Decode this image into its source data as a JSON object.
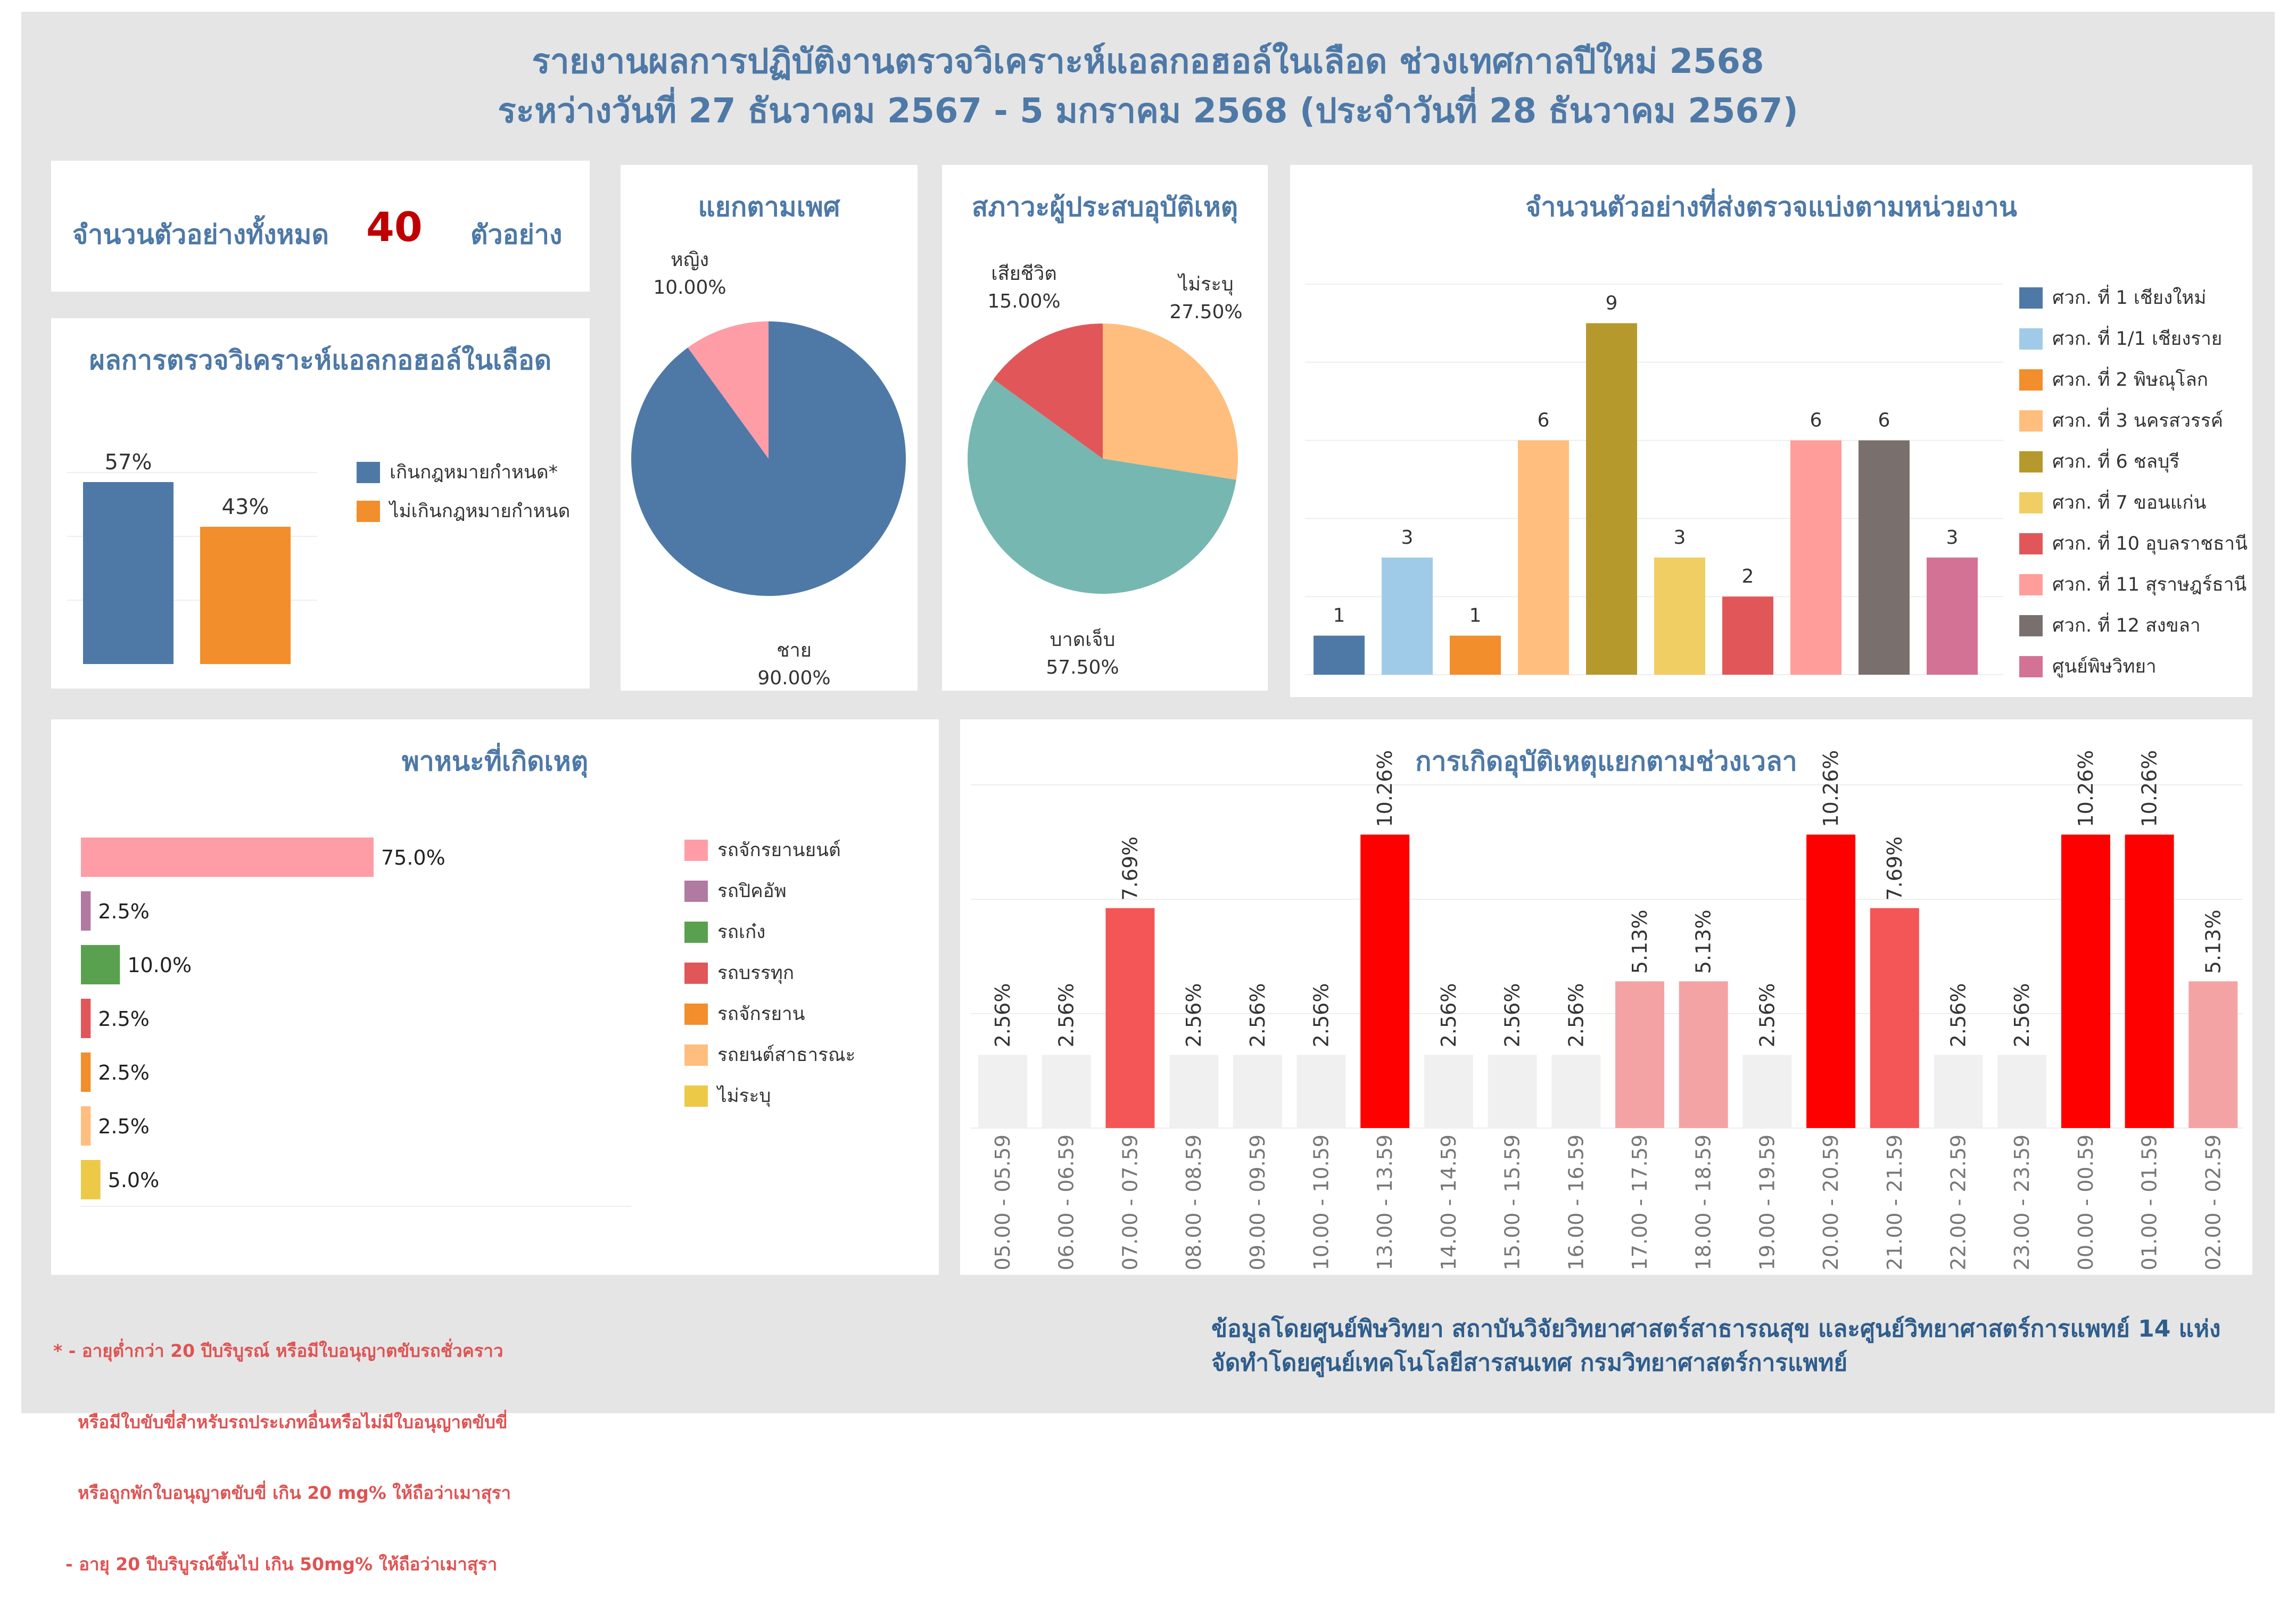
{
  "header": {
    "title_line1": "รายงานผลการปฏิบัติงานตรวจวิเคราะห์แอลกอฮอล์ในเลือด ช่วงเทศกาลปีใหม่ 2568",
    "title_line2": "ระหว่างวันที่ 27 ธันวาคม 2567 - 5 มกราคม 2568 (ประจำวันที่ 28 ธันวาคม 2567)"
  },
  "total": {
    "label": "จำนวนตัวอย่างทั้งหมด",
    "value": "40",
    "unit": "ตัวอย่าง"
  },
  "colors": {
    "title": "#4e79a7",
    "total_value": "#c00000",
    "footnote": "#e05252"
  },
  "charts": {
    "result": {
      "title": "ผลการตรวจวิเคราะห์แอลกอฮอล์ในเลือด",
      "type": "bar",
      "categories": [
        "เกินกฎหมายกำหนด*",
        "ไม่เกินกฎหมายกำหนด"
      ],
      "values": [
        57,
        43
      ],
      "labels": [
        "57%",
        "43%"
      ],
      "colors": [
        "#4e79a7",
        "#f28e2b"
      ]
    },
    "gender": {
      "title": "แยกตามเพศ",
      "type": "pie",
      "slices": [
        {
          "name": "ชาย",
          "value": 90.0,
          "pct_label": "90.00%",
          "color": "#4e79a7"
        },
        {
          "name": "หญิง",
          "value": 10.0,
          "pct_label": "10.00%",
          "color": "#ff9da7"
        }
      ]
    },
    "victim": {
      "title": "สภาวะผู้ประสบอุบัติเหตุ",
      "type": "pie",
      "slices": [
        {
          "name": "ไม่ระบุ",
          "value": 27.5,
          "pct_label": "27.50%",
          "color": "#ffbe7d"
        },
        {
          "name": "บาดเจ็บ",
          "value": 57.5,
          "pct_label": "57.50%",
          "color": "#76b7b2"
        },
        {
          "name": "เสียชีวิต",
          "value": 15.0,
          "pct_label": "15.00%",
          "color": "#e15759"
        }
      ]
    },
    "units": {
      "title": "จำนวนตัวอย่างที่ส่งตรวจแบ่งตามหน่วยงาน",
      "type": "bar",
      "categories": [
        "ศวก. ที่ 1 เชียงใหม่",
        "ศวก. ที่ 1/1 เชียงราย",
        "ศวก. ที่ 2 พิษณุโลก",
        "ศวก. ที่ 3 นครสวรรค์",
        "ศวก. ที่ 6 ชลบุรี",
        "ศวก. ที่ 7 ขอนแก่น",
        "ศวก. ที่ 10 อุบลราชธานี",
        "ศวก. ที่ 11 สุราษฎร์ธานี",
        "ศวก. ที่ 12 สงขลา",
        "ศูนย์พิษวิทยา"
      ],
      "values": [
        1,
        3,
        1,
        6,
        9,
        3,
        2,
        6,
        6,
        3
      ],
      "colors": [
        "#4e79a7",
        "#a0cbe8",
        "#f28e2b",
        "#ffbe7d",
        "#b6992d",
        "#f1ce63",
        "#e15759",
        "#ff9d9a",
        "#79706e",
        "#d37295"
      ],
      "ylim": [
        0,
        10
      ]
    },
    "vehicle": {
      "title": "พาหนะที่เกิดเหตุ",
      "type": "bar",
      "categories": [
        "รถจักรยานยนต์",
        "รถปิคอัพ",
        "รถเก๋ง",
        "รถบรรทุก",
        "รถจักรยาน",
        "รถยนต์สาธารณะ",
        "ไม่ระบุ"
      ],
      "values": [
        75.0,
        2.5,
        10.0,
        2.5,
        2.5,
        2.5,
        5.0
      ],
      "labels": [
        "75.0%",
        "2.5%",
        "10.0%",
        "2.5%",
        "2.5%",
        "2.5%",
        "5.0%"
      ],
      "colors": [
        "#ff9da7",
        "#b07aa1",
        "#59a14f",
        "#e15759",
        "#f28e2b",
        "#ffbe7d",
        "#edc948"
      ],
      "xlim": [
        0,
        100
      ]
    },
    "time": {
      "title": "การเกิดอุบัติเหตุแยกตามช่วงเวลา",
      "type": "bar",
      "categories": [
        "05.00 - 05.59",
        "06.00 - 06.59",
        "07.00 - 07.59",
        "08.00 - 08.59",
        "09.00 - 09.59",
        "10.00 - 10.59",
        "13.00 - 13.59",
        "14.00 - 14.59",
        "15.00 - 15.59",
        "16.00 - 16.59",
        "17.00 - 17.59",
        "18.00 - 18.59",
        "19.00 - 19.59",
        "20.00 - 20.59",
        "21.00 - 21.59",
        "22.00 - 22.59",
        "23.00 - 23.59",
        "00.00 - 00.59",
        "01.00 - 01.59",
        "02.00 - 02.59"
      ],
      "values": [
        2.56,
        2.56,
        7.69,
        2.56,
        2.56,
        2.56,
        10.26,
        2.56,
        2.56,
        2.56,
        5.13,
        5.13,
        2.56,
        10.26,
        7.69,
        2.56,
        2.56,
        10.26,
        10.26,
        5.13
      ],
      "labels": [
        "2.56%",
        "2.56%",
        "7.69%",
        "2.56%",
        "2.56%",
        "2.56%",
        "10.26%",
        "2.56%",
        "2.56%",
        "2.56%",
        "5.13%",
        "5.13%",
        "2.56%",
        "10.26%",
        "7.69%",
        "2.56%",
        "2.56%",
        "10.26%",
        "10.26%",
        "5.13%"
      ],
      "color_scale": {
        "2.56": "#f0f0f0",
        "5.13": "#f4a3a5",
        "7.69": "#f45556",
        "10.26": "#ff0000"
      },
      "ylim": [
        0,
        12
      ]
    }
  },
  "footnote": {
    "line1": "* - อายุต่ำกว่า 20 ปีบริบูรณ์ หรือมีใบอนุญาตขับรถชั่วคราว",
    "line2": "    หรือมีใบขับขี่สำหรับรถประเภทอื่นหรือไม่มีใบอนุญาตขับขี่",
    "line3": "    หรือถูกพักใบอนุญาตขับขี่ เกิน 20 mg% ให้ถือว่าเมาสุรา",
    "line4": "  - อายุ 20 ปีบริบูรณ์ขึ้นไป เกิน 50mg% ให้ถือว่าเมาสุรา"
  },
  "credit": {
    "line1": "ข้อมูลโดยศูนย์พิษวิทยา สถาบันวิจัยวิทยาศาสตร์สาธารณสุข และศูนย์วิทยาศาสตร์การแพทย์ 14 แห่ง",
    "line2": "จัดทำโดยศูนย์เทคโนโลยีสารสนเทศ กรมวิทยาศาสตร์การแพทย์"
  }
}
